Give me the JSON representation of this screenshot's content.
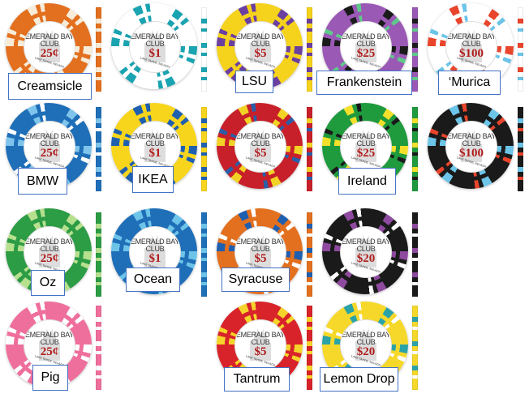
{
  "club_name": "EMERALD BAY CLUB",
  "location": "LAKE TAHOE, NEVADA",
  "chips": [
    {
      "label": "Creamsicle",
      "denomination": "25¢",
      "colors": [
        "#e3701f",
        "#f7ecd8"
      ]
    },
    {
      "label": "",
      "denomination": "$1",
      "colors": [
        "#ffffff",
        "#1aa3b0"
      ]
    },
    {
      "label": "LSU",
      "denomination": "$5",
      "colors": [
        "#f5d21c",
        "#6a3fa0"
      ]
    },
    {
      "label": "Frankenstein",
      "denomination": "$25",
      "colors": [
        "#9b59b6",
        "#1a1a1a",
        "#5fc98a"
      ]
    },
    {
      "label": "‘Murica",
      "denomination": "$100",
      "colors": [
        "#ffffff",
        "#e8452c",
        "#6cc4e8"
      ]
    },
    {
      "label": "BMW",
      "denomination": "25¢",
      "colors": [
        "#1f6fb8",
        "#7ec4ec",
        "#ffffff"
      ]
    },
    {
      "label": "IKEA",
      "denomination": "$1",
      "colors": [
        "#f8d51d",
        "#1f5fb0"
      ]
    },
    {
      "label": "",
      "denomination": "$5",
      "colors": [
        "#c8202a",
        "#f2d224",
        "#2a5ea8"
      ]
    },
    {
      "label": "Ireland",
      "denomination": "$25",
      "colors": [
        "#1f9a3d",
        "#f4e02a",
        "#1a1a1a"
      ]
    },
    {
      "label": "",
      "denomination": "$100",
      "colors": [
        "#1a1a1a",
        "#6cc4e8",
        "#e8452c"
      ]
    },
    {
      "label": "Oz",
      "denomination": "25¢",
      "colors": [
        "#2c9c45",
        "#b6e08e"
      ]
    },
    {
      "label": "Ocean",
      "denomination": "$1",
      "colors": [
        "#1f6fb8",
        "#6cc4e8"
      ]
    },
    {
      "label": "Syracuse",
      "denomination": "$5",
      "colors": [
        "#e3701f",
        "#1f5fb0",
        "#ffffff"
      ]
    },
    {
      "label": "",
      "denomination": "$20",
      "colors": [
        "#1a1a1a",
        "#8e4a9e",
        "#ffffff"
      ]
    },
    {
      "label": "Pig",
      "denomination": "25¢",
      "colors": [
        "#ef6f9c",
        "#ffffff"
      ]
    },
    {
      "label": "Tantrum",
      "denomination": "$5",
      "colors": [
        "#d8232a",
        "#f6d32a"
      ]
    },
    {
      "label": "Lemon Drop",
      "denomination": "$20",
      "colors": [
        "#f6d82a",
        "#2aa3a8",
        "#ffffff"
      ]
    }
  ]
}
